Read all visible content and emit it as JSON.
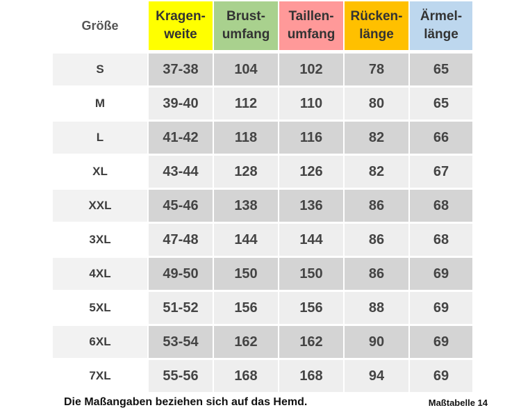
{
  "table": {
    "header": {
      "size": "Größe",
      "columns": [
        {
          "line1": "Kragen-",
          "line2": "weite",
          "color": "#ffff00"
        },
        {
          "line1": "Brust-",
          "line2": "umfang",
          "color": "#a9d18e"
        },
        {
          "line1": "Taillen-",
          "line2": "umfang",
          "color": "#ff9999"
        },
        {
          "line1": "Rücken-",
          "line2": "länge",
          "color": "#ffc000"
        },
        {
          "line1": "Ärmel-",
          "line2": "länge",
          "color": "#bdd7ee"
        }
      ]
    },
    "rows": [
      {
        "size": "S",
        "values": [
          "37-38",
          "104",
          "102",
          "78",
          "65"
        ]
      },
      {
        "size": "M",
        "values": [
          "39-40",
          "112",
          "110",
          "80",
          "65"
        ]
      },
      {
        "size": "L",
        "values": [
          "41-42",
          "118",
          "116",
          "82",
          "66"
        ]
      },
      {
        "size": "XL",
        "values": [
          "43-44",
          "128",
          "126",
          "82",
          "67"
        ]
      },
      {
        "size": "XXL",
        "values": [
          "45-46",
          "138",
          "136",
          "86",
          "68"
        ]
      },
      {
        "size": "3XL",
        "values": [
          "47-48",
          "144",
          "144",
          "86",
          "68"
        ]
      },
      {
        "size": "4XL",
        "values": [
          "49-50",
          "150",
          "150",
          "86",
          "69"
        ]
      },
      {
        "size": "5XL",
        "values": [
          "51-52",
          "156",
          "156",
          "88",
          "69"
        ]
      },
      {
        "size": "6XL",
        "values": [
          "53-54",
          "162",
          "162",
          "90",
          "69"
        ]
      },
      {
        "size": "7XL",
        "values": [
          "55-56",
          "168",
          "168",
          "94",
          "69"
        ]
      }
    ]
  },
  "footer": {
    "note": "Die Maßangaben beziehen sich auf das Hemd.",
    "label": "Maßtabelle 14"
  }
}
